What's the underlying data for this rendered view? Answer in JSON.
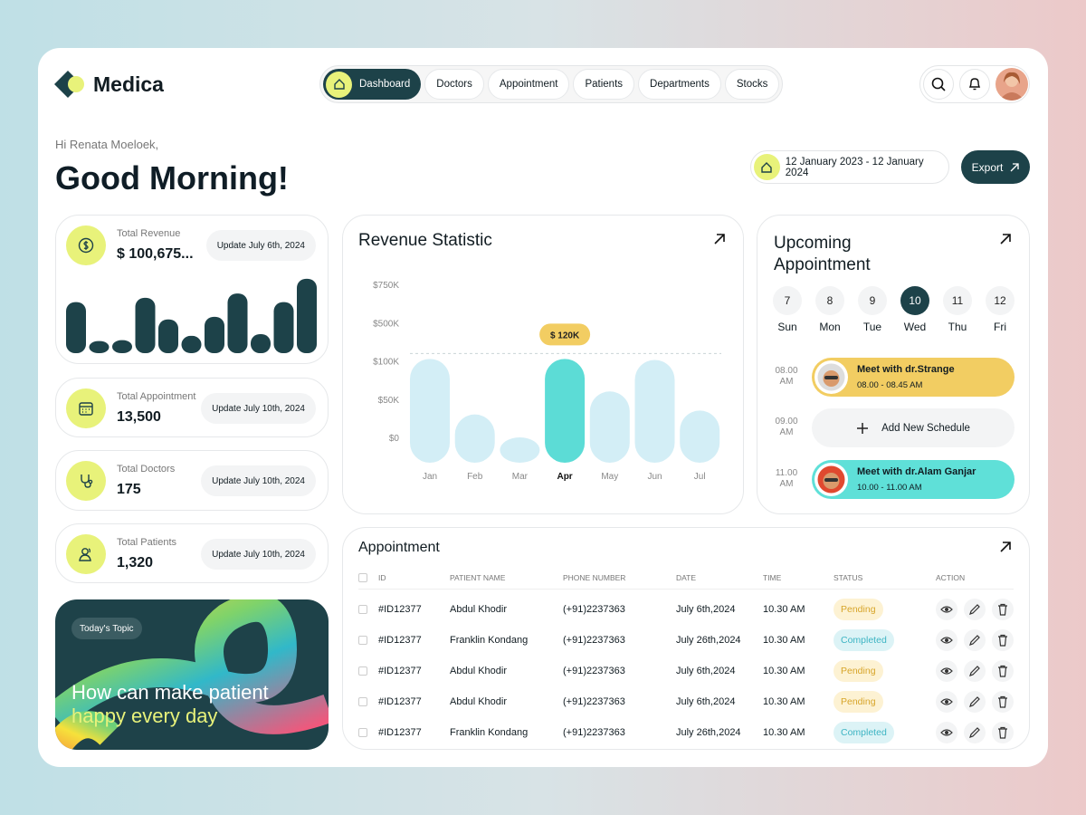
{
  "brand": "Medica",
  "nav": [
    "Dashboard",
    "Doctors",
    "Appointment",
    "Patients",
    "Departments",
    "Stocks"
  ],
  "greeting": "Hi Renata Moeloek,",
  "headline": "Good Morning!",
  "date_range": "12 January 2023 - 12 January 2024",
  "export": "Export",
  "stats": [
    {
      "label": "Total Revenue",
      "value": "$ 100,675...",
      "update": "Update July 6th, 2024"
    },
    {
      "label": "Total Appointment",
      "value": "13,500",
      "update": "Update July 10th, 2024"
    },
    {
      "label": "Total Doctors",
      "value": "175",
      "update": "Update July 10th, 2024"
    },
    {
      "label": "Total Patients",
      "value": "1,320",
      "update": "Update July 10th, 2024"
    }
  ],
  "topic": {
    "tag": "Today's Topic",
    "line1": "How can make patient",
    "line2": "happy every day"
  },
  "chart_data": [
    {
      "type": "bar",
      "values": [
        59,
        14,
        15,
        64,
        39,
        20,
        42,
        69,
        22,
        59,
        86
      ],
      "ylim": [
        0,
        90
      ],
      "color": "#1d4249"
    },
    {
      "type": "bar",
      "title": "Revenue Statistic",
      "categories": [
        "Jan",
        "Feb",
        "Mar",
        "Apr",
        "May",
        "Jun",
        "Jul"
      ],
      "values": [
        120000,
        30000,
        0,
        120000,
        60000,
        110000,
        35000
      ],
      "value_labels": [
        null,
        null,
        null,
        "$ 120K",
        null,
        null,
        null
      ],
      "colors": [
        "#d3eef6",
        "#d3eef6",
        "#d3eef6",
        "#5cdcd6",
        "#d3eef6",
        "#d3eef6",
        "#d3eef6"
      ],
      "ylim": [
        0,
        750000
      ],
      "yticks": [
        {
          "value": 0,
          "label": "$0"
        },
        {
          "value": 50000,
          "label": "$50K"
        },
        {
          "value": 100000,
          "label": "$100K"
        },
        {
          "value": 500000,
          "label": "$500K"
        },
        {
          "value": 750000,
          "label": "$750K"
        }
      ]
    }
  ],
  "upcoming": {
    "title": "Upcoming Appointment",
    "selected_date": 10,
    "days": [
      {
        "date": 7,
        "day": "Sun"
      },
      {
        "date": 8,
        "day": "Mon"
      },
      {
        "date": 9,
        "day": "Tue"
      },
      {
        "date": 10,
        "day": "Wed"
      },
      {
        "date": 11,
        "day": "Thu"
      },
      {
        "date": 12,
        "day": "Fri"
      }
    ],
    "slots": [
      {
        "time": "08.00 AM",
        "title": "Meet with dr.Strange",
        "range": "08.00 - 08.45 AM",
        "color": "#f2cd62"
      },
      {
        "time": "09.00 AM",
        "add": "Add New Schedule"
      },
      {
        "time": "11.00 AM",
        "title": "Meet with dr.Alam Ganjar",
        "range": "10.00 - 11.00 AM",
        "color": "#5fe0d8"
      }
    ]
  },
  "table": {
    "title": "Appointment",
    "columns": [
      "ID",
      "PATIENT NAME",
      "PHONE NUMBER",
      "DATE",
      "TIME",
      "STATUS",
      "ACTION"
    ],
    "rows": [
      [
        "#ID12377",
        "Abdul Khodir",
        "(+91)2237363",
        "July 6th,2024",
        "10.30 AM",
        "Pending"
      ],
      [
        "#ID12377",
        "Franklin Kondang",
        "(+91)2237363",
        "July 26th,2024",
        "10.30 AM",
        "Completed"
      ],
      [
        "#ID12377",
        "Abdul Khodir",
        "(+91)2237363",
        "July 6th,2024",
        "10.30 AM",
        "Pending"
      ],
      [
        "#ID12377",
        "Abdul Khodir",
        "(+91)2237363",
        "July 6th,2024",
        "10.30 AM",
        "Pending"
      ],
      [
        "#ID12377",
        "Franklin Kondang",
        "(+91)2237363",
        "July 26th,2024",
        "10.30 AM",
        "Completed"
      ]
    ],
    "status_styles": {
      "Pending": {
        "bg": "#fdf2d3",
        "fg": "#d7a52a"
      },
      "Completed": {
        "bg": "#dcf3f6",
        "fg": "#3db4c3"
      }
    }
  }
}
